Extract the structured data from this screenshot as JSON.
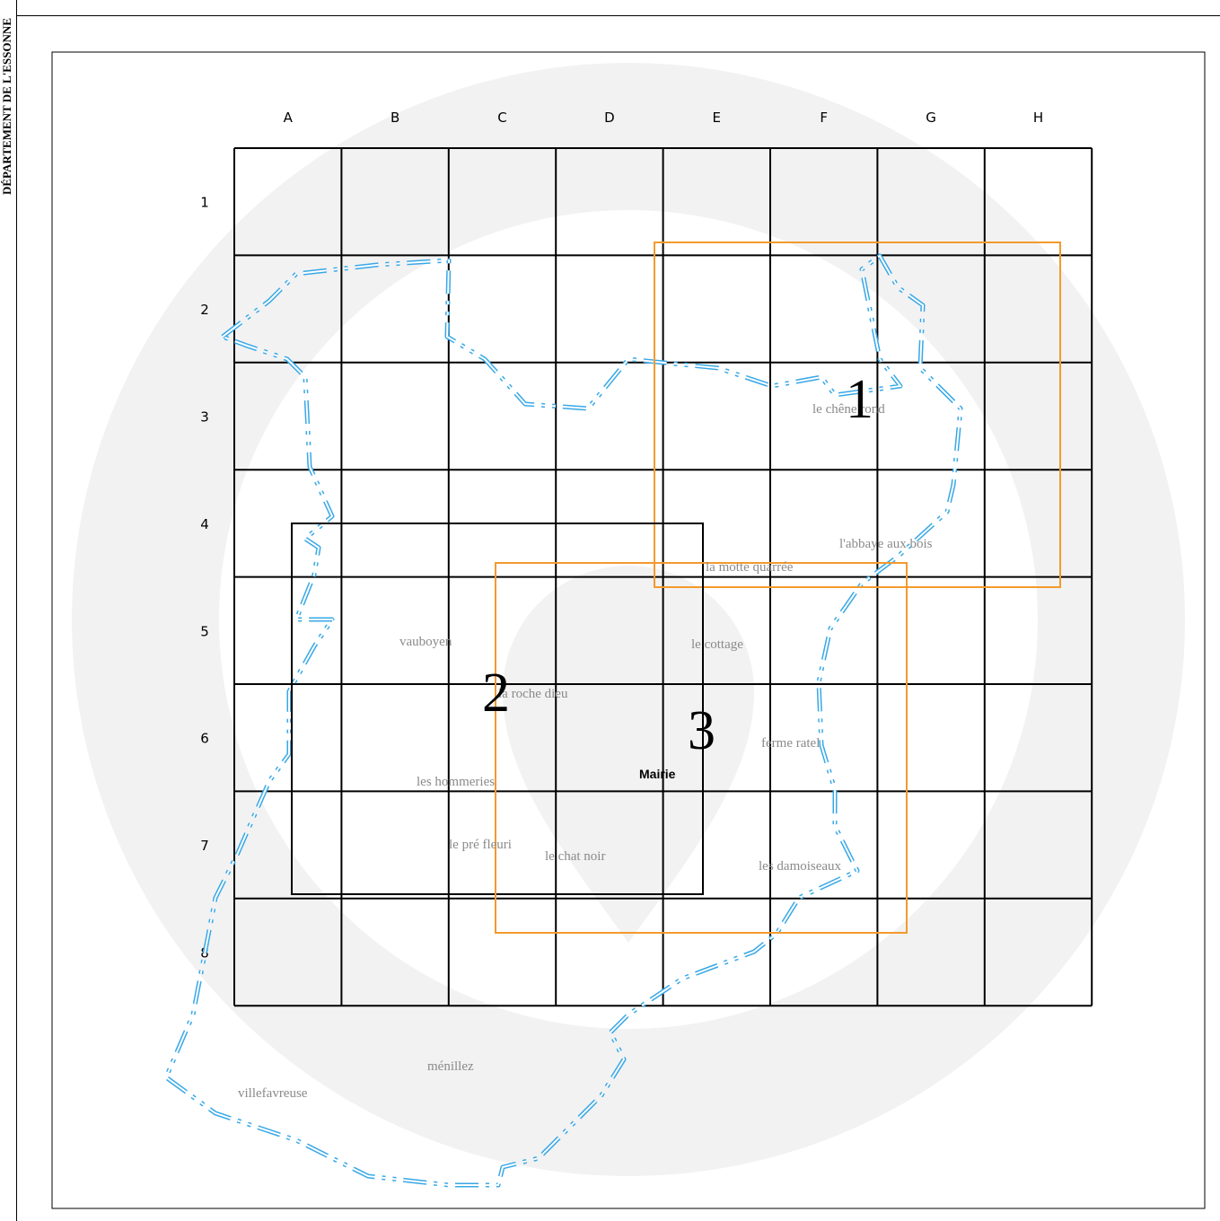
{
  "sidebar": {
    "title": "DÉPARTEMENT DE L'ESSONNE"
  },
  "grid": {
    "columns": [
      "A",
      "B",
      "C",
      "D",
      "E",
      "F",
      "G",
      "H"
    ],
    "rows": [
      "1",
      "2",
      "3",
      "4",
      "5",
      "6",
      "7",
      "8"
    ]
  },
  "zones": [
    {
      "id": "zone-1",
      "label": "1",
      "color": "#f39a2e"
    },
    {
      "id": "zone-2",
      "label": "2",
      "color": "#000000"
    },
    {
      "id": "zone-3",
      "label": "3",
      "color": "#f39a2e"
    }
  ],
  "places": [
    {
      "id": "le-chene-rond",
      "name": "le chêne rond"
    },
    {
      "id": "abbaye-aux-bois",
      "name": "l'abbaye aux bois"
    },
    {
      "id": "la-motte-quarree",
      "name": "la motte quarrée"
    },
    {
      "id": "vauboyen",
      "name": "vauboyen"
    },
    {
      "id": "le-cottage",
      "name": "le cottage"
    },
    {
      "id": "la-roche-dieu",
      "name": "la roche dieu"
    },
    {
      "id": "ferme-ratel",
      "name": "ferme ratel"
    },
    {
      "id": "les-hommeries",
      "name": "les hommeries"
    },
    {
      "id": "le-pre-fleuri",
      "name": "le pré fleuri"
    },
    {
      "id": "le-chat-noir",
      "name": "le chat noir"
    },
    {
      "id": "les-damoiseaux",
      "name": "les damoiseaux"
    },
    {
      "id": "menillez",
      "name": "ménillez"
    },
    {
      "id": "villefavreuse",
      "name": "villefavreuse"
    }
  ],
  "mairie": {
    "label": "Mairie"
  },
  "colors": {
    "boundary": "#38a8e6",
    "watermark": "#f2f2f2",
    "place_text": "#8a8a8a"
  }
}
